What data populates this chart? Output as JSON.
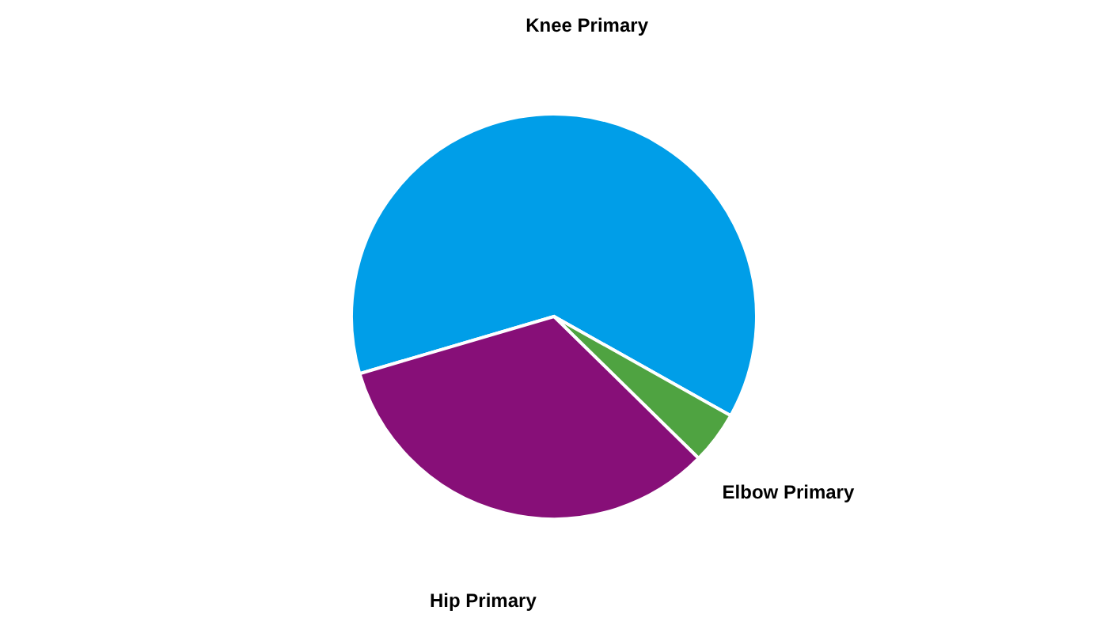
{
  "chart_data": {
    "type": "pie",
    "categories": [
      "Knee Primary",
      "Elbow Primary",
      "Hip Primary"
    ],
    "values": [
      62.7,
      4.2,
      33.1
    ],
    "colors": [
      "#009ee8",
      "#4fa341",
      "#870f78"
    ]
  }
}
